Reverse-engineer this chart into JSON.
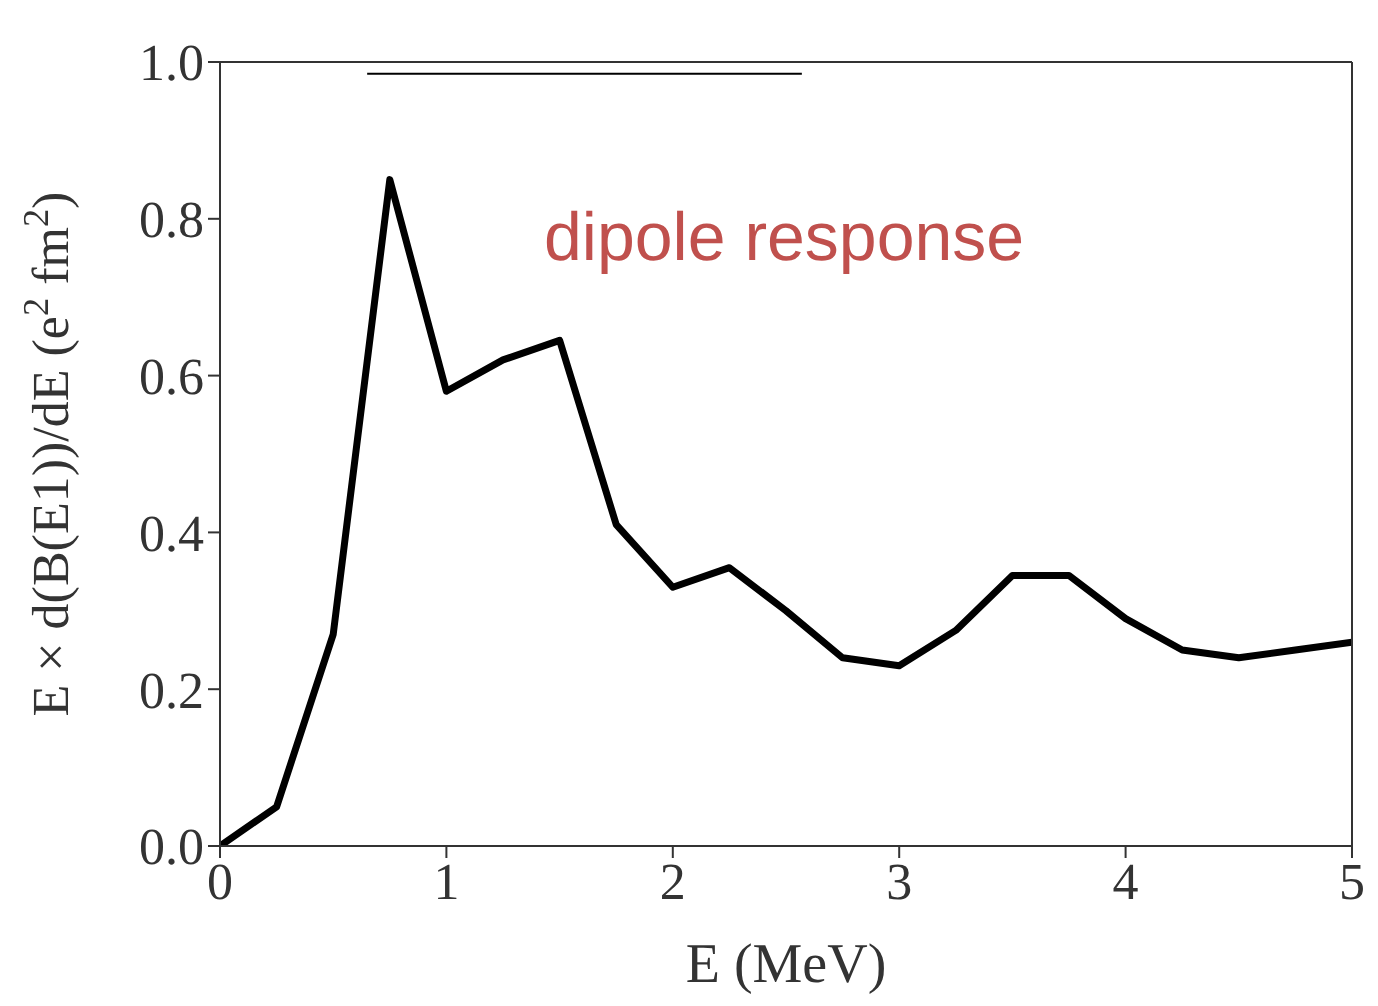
{
  "chart_data": {
    "type": "line",
    "xlabel": "E (MeV)",
    "ylabel": "E × d(B(E1))/dE (e$^{2}$ fm$^{2}$)",
    "annotations": [
      "dipole response"
    ],
    "x": [
      0,
      0.25,
      0.5,
      0.75,
      1,
      1.25,
      1.5,
      1.75,
      2,
      2.25,
      2.5,
      2.75,
      3,
      3.25,
      3.5,
      3.75,
      4,
      4.25,
      4.5,
      4.75,
      5
    ],
    "series": [
      {
        "color": "#000000",
        "values": [
          0,
          0.05,
          0.27,
          0.85,
          0.58,
          0.62,
          0.645,
          0.41,
          0.33,
          0.355,
          0.3,
          0.24,
          0.23,
          0.275,
          0.345,
          0.345,
          0.29,
          0.25,
          0.24,
          0.25,
          0.26
        ]
      },
      {
        "color": "#000000",
        "x": [
          0.65,
          2.57
        ],
        "values": [
          0.985,
          0.985
        ]
      }
    ],
    "xlim": [
      0,
      5
    ],
    "xticks": [
      0,
      1,
      2,
      3,
      4,
      5
    ],
    "ylim": [
      0,
      1
    ],
    "yticks": [
      {
        "value": 0,
        "label": "0.0"
      },
      0.2,
      0.4,
      0.6,
      0.8,
      {
        "value": 1,
        "label": "1.0"
      }
    ],
    "marker": "none",
    "line_style": "solid"
  }
}
